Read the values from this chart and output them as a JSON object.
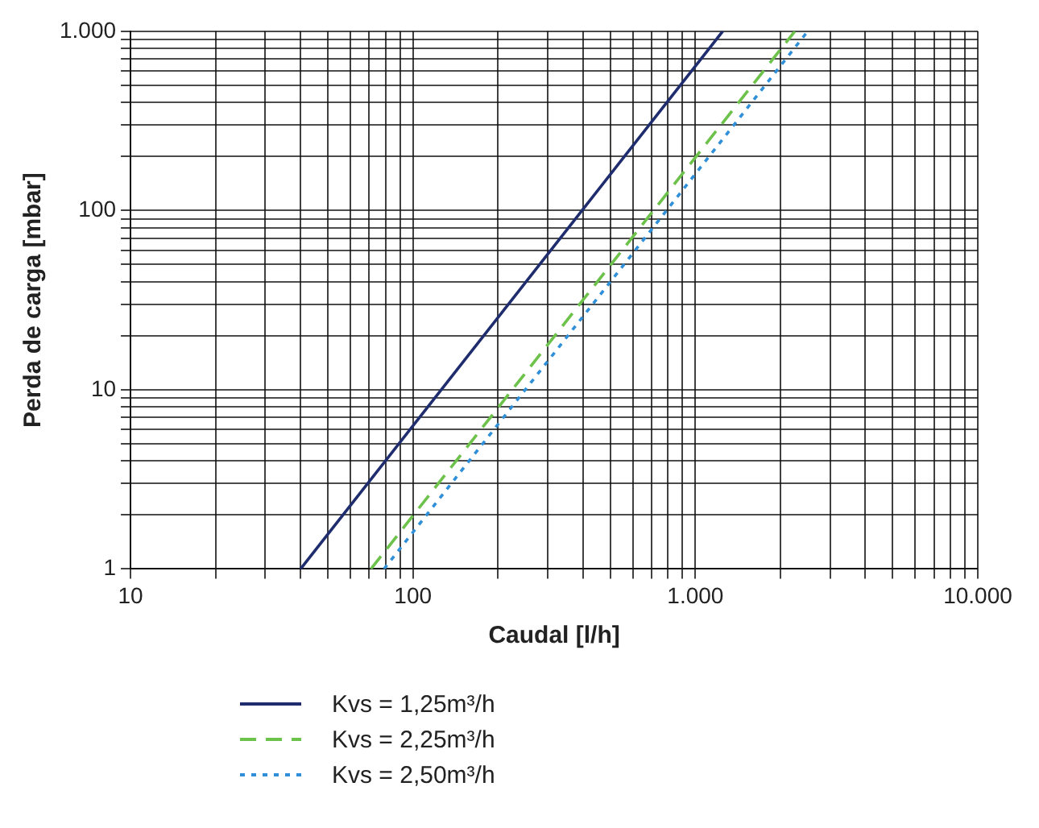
{
  "chart_data": {
    "type": "line",
    "xlabel": "Caudal [l/h]",
    "ylabel": "Perda de carga [mbar]",
    "log": "xy",
    "grid": true,
    "legend": "bottom",
    "marker": "none",
    "xlim": [
      10,
      10000
    ],
    "ylim": [
      1,
      1000
    ],
    "xticks": [
      {
        "value": 10,
        "label": "10"
      },
      {
        "value": 20,
        "label": null
      },
      {
        "value": 30,
        "label": null
      },
      {
        "value": 40,
        "label": null
      },
      {
        "value": 50,
        "label": null
      },
      {
        "value": 60,
        "label": null
      },
      {
        "value": 70,
        "label": null
      },
      {
        "value": 80,
        "label": null
      },
      {
        "value": 90,
        "label": null
      },
      {
        "value": 100,
        "label": "100"
      },
      {
        "value": 200,
        "label": null
      },
      {
        "value": 300,
        "label": null
      },
      {
        "value": 400,
        "label": null
      },
      {
        "value": 500,
        "label": null
      },
      {
        "value": 600,
        "label": null
      },
      {
        "value": 700,
        "label": null
      },
      {
        "value": 800,
        "label": null
      },
      {
        "value": 900,
        "label": null
      },
      {
        "value": 1000,
        "label": "1.000"
      },
      {
        "value": 2000,
        "label": null
      },
      {
        "value": 3000,
        "label": null
      },
      {
        "value": 4000,
        "label": null
      },
      {
        "value": 5000,
        "label": null
      },
      {
        "value": 6000,
        "label": null
      },
      {
        "value": 7000,
        "label": null
      },
      {
        "value": 8000,
        "label": null
      },
      {
        "value": 9000,
        "label": null
      },
      {
        "value": 10000,
        "label": "10.000"
      }
    ],
    "yticks": [
      {
        "value": 1,
        "label": "1"
      },
      {
        "value": 2,
        "label": null
      },
      {
        "value": 3,
        "label": null
      },
      {
        "value": 4,
        "label": null
      },
      {
        "value": 5,
        "label": null
      },
      {
        "value": 6,
        "label": null
      },
      {
        "value": 7,
        "label": null
      },
      {
        "value": 8,
        "label": null
      },
      {
        "value": 9,
        "label": null
      },
      {
        "value": 10,
        "label": "10"
      },
      {
        "value": 20,
        "label": null
      },
      {
        "value": 30,
        "label": null
      },
      {
        "value": 40,
        "label": null
      },
      {
        "value": 50,
        "label": null
      },
      {
        "value": 60,
        "label": null
      },
      {
        "value": 70,
        "label": null
      },
      {
        "value": 80,
        "label": null
      },
      {
        "value": 90,
        "label": null
      },
      {
        "value": 100,
        "label": "100"
      },
      {
        "value": 200,
        "label": null
      },
      {
        "value": 300,
        "label": null
      },
      {
        "value": 400,
        "label": null
      },
      {
        "value": 500,
        "label": null
      },
      {
        "value": 600,
        "label": null
      },
      {
        "value": 700,
        "label": null
      },
      {
        "value": 800,
        "label": null
      },
      {
        "value": 900,
        "label": null
      },
      {
        "value": 1000,
        "label": "1.000"
      }
    ],
    "series": [
      {
        "name": "Kvs = 1,25m³/h",
        "color": "#1f2d6e",
        "line_style": "solid",
        "x": [
          40,
          1250
        ],
        "values": [
          1,
          1000
        ]
      },
      {
        "name": "Kvs = 2,25m³/h",
        "color": "#6cc24a",
        "line_style": "dashed",
        "x": [
          71,
          2250
        ],
        "values": [
          1,
          1000
        ]
      },
      {
        "name": "Kvs = 2,50m³/h",
        "color": "#2f8fd8",
        "line_style": "dotted",
        "x": [
          79,
          2500
        ],
        "values": [
          1,
          1000
        ]
      }
    ]
  }
}
